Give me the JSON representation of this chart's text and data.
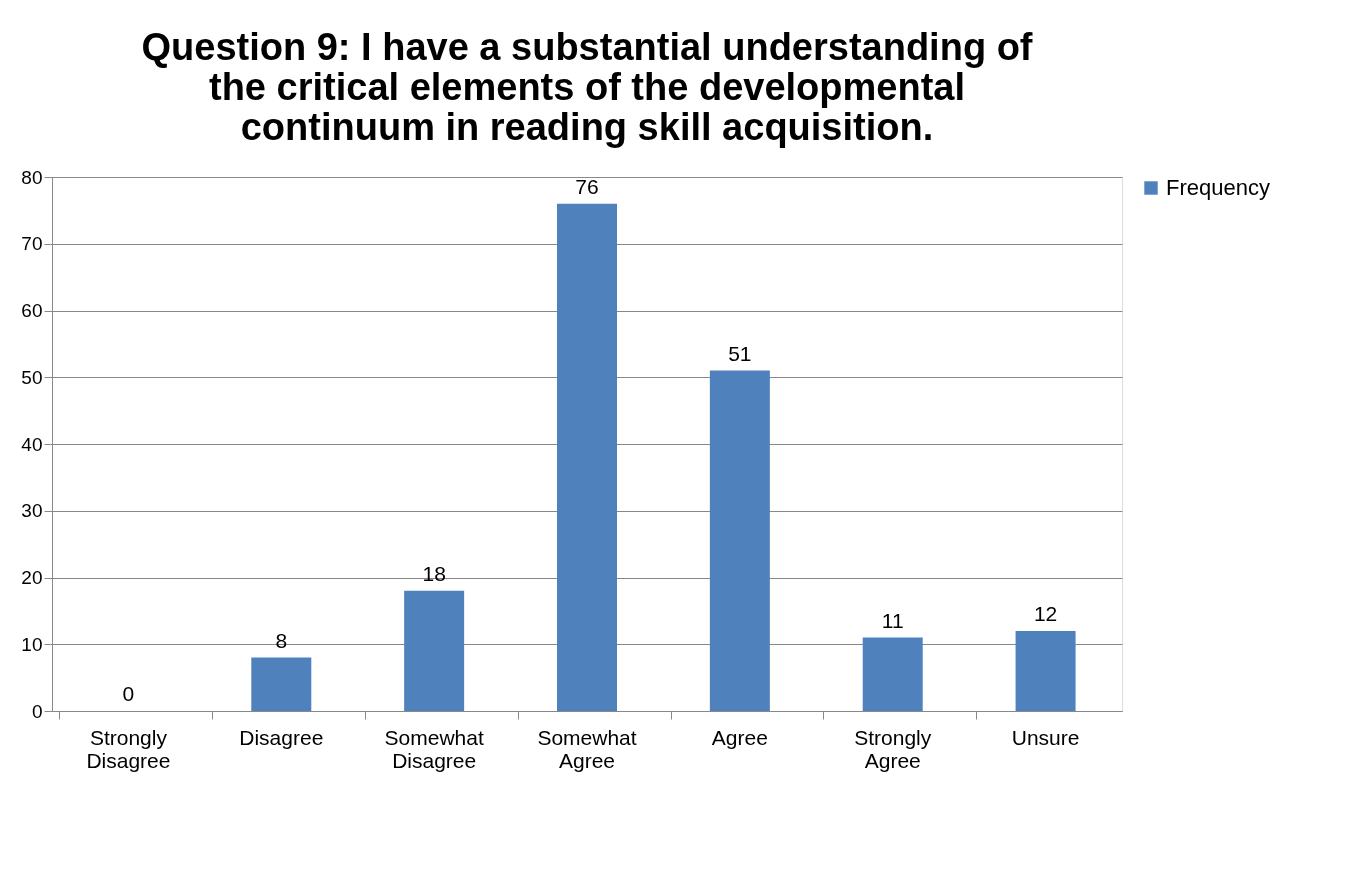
{
  "chart_data": {
    "type": "bar",
    "title": "Question 9: I have a substantial understanding of the critical elements of the developmental continuum in reading skill acquisition.",
    "categories": [
      "Strongly Disagree",
      "Disagree",
      "Somewhat Disagree",
      "Somewhat Agree",
      "Agree",
      "Strongly Agree",
      "Unsure"
    ],
    "series": [
      {
        "name": "Frequency",
        "color": "#4f81bd",
        "values": [
          0,
          8,
          18,
          76,
          51,
          11,
          12
        ]
      }
    ],
    "ylim": [
      0,
      80
    ],
    "yticks": [
      0,
      10,
      20,
      30,
      40,
      50,
      60,
      70,
      80
    ],
    "grid": "y",
    "legend": "right",
    "data_labels": true
  }
}
